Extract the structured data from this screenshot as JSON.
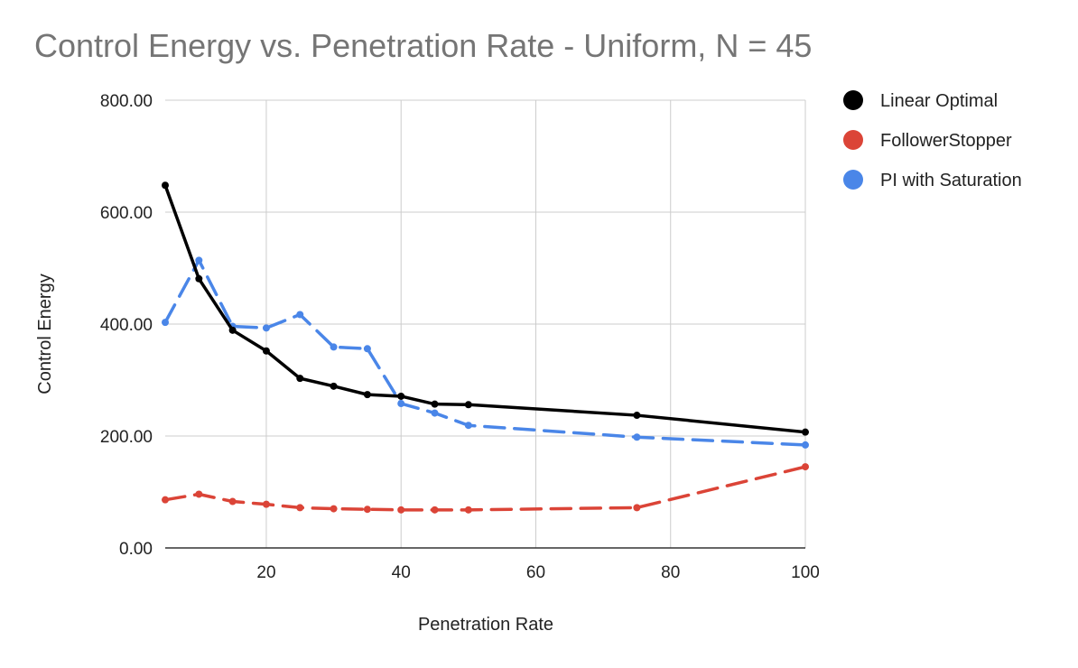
{
  "chart_data": {
    "type": "line",
    "title": "Control Energy vs. Penetration Rate - Uniform, N = 45",
    "xlabel": "Penetration Rate",
    "ylabel": "Control Energy",
    "xlim": [
      5,
      100
    ],
    "ylim": [
      0,
      800
    ],
    "x_ticks": [
      20,
      40,
      60,
      80,
      100
    ],
    "x_tick_labels": [
      "20",
      "40",
      "60",
      "80",
      "100"
    ],
    "y_ticks": [
      0,
      200,
      400,
      600,
      800
    ],
    "y_tick_labels": [
      "0.00",
      "200.00",
      "400.00",
      "600.00",
      "800.00"
    ],
    "grid": true,
    "legend_position": "right",
    "series": [
      {
        "name": "Linear Optimal",
        "color": "#000000",
        "dashed": false,
        "x": [
          5,
          10,
          15,
          20,
          25,
          30,
          35,
          40,
          45,
          50,
          75,
          100
        ],
        "values": [
          648,
          481,
          389,
          352,
          303,
          289,
          274,
          271,
          257,
          256,
          237,
          207
        ]
      },
      {
        "name": "FollowerStopper",
        "color": "#db4437",
        "dashed": true,
        "x": [
          5,
          10,
          15,
          20,
          25,
          30,
          35,
          40,
          45,
          50,
          75,
          100
        ],
        "values": [
          86,
          96,
          83,
          78,
          72,
          70,
          69,
          68,
          68,
          68,
          72,
          145
        ]
      },
      {
        "name": "PI with Saturation",
        "color": "#4a86e8",
        "dashed": true,
        "x": [
          5,
          10,
          15,
          20,
          25,
          30,
          35,
          40,
          45,
          50,
          75,
          100
        ],
        "values": [
          403,
          514,
          396,
          393,
          417,
          359,
          356,
          258,
          241,
          219,
          198,
          184
        ]
      }
    ]
  }
}
